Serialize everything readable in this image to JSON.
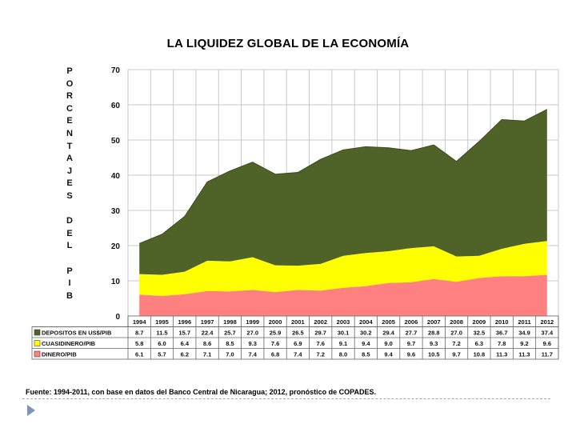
{
  "chart_data": {
    "type": "area",
    "stacked": true,
    "title": "LA LIQUIDEZ GLOBAL DE LA ECONOMÍA",
    "ylabel": "PORCENTAJES DEL PIB",
    "ylabel_letters": [
      "P",
      "O",
      "R",
      "C",
      "E",
      "N",
      "T",
      "A",
      "J",
      "E",
      "S",
      "",
      "D",
      "E",
      "L",
      "",
      "P",
      "I",
      "B"
    ],
    "ylim": [
      0,
      70
    ],
    "yticks": [
      0,
      10,
      20,
      30,
      40,
      50,
      60,
      70
    ],
    "grid": true,
    "categories": [
      "1994",
      "1995",
      "1996",
      "1997",
      "1998",
      "1999",
      "2000",
      "2001",
      "2002",
      "2003",
      "2004",
      "2005",
      "2006",
      "2007",
      "2008",
      "2009",
      "2010",
      "2011",
      "2012"
    ],
    "series": [
      {
        "name": "DINERO/PIB",
        "color": "#ff8080",
        "values": [
          6.1,
          5.7,
          6.2,
          7.1,
          7.0,
          7.4,
          6.8,
          7.4,
          7.2,
          8.0,
          8.5,
          9.4,
          9.6,
          10.5,
          9.7,
          10.8,
          11.3,
          11.3,
          11.7
        ],
        "labels": [
          "6.1",
          "5.7",
          "6.2",
          "7.1",
          "7.0",
          "7.4",
          "6.8",
          "7.4",
          "7.2",
          "8.0",
          "8.5",
          "9.4",
          "9.6",
          "10.5",
          "9.7",
          "10.8",
          "11.3",
          "11.3",
          "11.7"
        ]
      },
      {
        "name": "CUASIDINERO/PIB",
        "color": "#ffff00",
        "values": [
          5.8,
          6.0,
          6.4,
          8.6,
          8.5,
          9.3,
          7.6,
          6.9,
          7.6,
          9.1,
          9.4,
          9.0,
          9.7,
          9.3,
          7.2,
          6.3,
          7.8,
          9.2,
          9.6
        ],
        "labels": [
          "5.8",
          "6.0",
          "6.4",
          "8.6",
          "8.5",
          "9.3",
          "7.6",
          "6.9",
          "7.6",
          "9.1",
          "9.4",
          "9.0",
          "9.7",
          "9.3",
          "7.2",
          "6.3",
          "7.8",
          "9.2",
          "9.6"
        ]
      },
      {
        "name": "DEPOSITOS EN US$/PIB",
        "color": "#4f6228",
        "values": [
          8.7,
          11.5,
          15.7,
          22.4,
          25.7,
          27.0,
          25.9,
          26.5,
          29.7,
          30.1,
          30.2,
          29.4,
          27.7,
          28.8,
          27.0,
          32.5,
          36.7,
          34.9,
          37.4
        ],
        "labels": [
          "8.7",
          "11.5",
          "15.7",
          "22.4",
          "25.7",
          "27.0",
          "25.9",
          "26.5",
          "29.7",
          "30.1",
          "30.2",
          "29.4",
          "27.7",
          "28.8",
          "27.0",
          "32.5",
          "36.7",
          "34.9",
          "37.4"
        ]
      }
    ],
    "table_rows_order": [
      "DEPOSITOS EN US$/PIB",
      "CUASIDINERO/PIB",
      "DINERO/PIB"
    ],
    "source_note": "Fuente: 1994-2011, con base en datos del Banco Central de Nicaragua; 2012, pronóstico de COPADES."
  }
}
